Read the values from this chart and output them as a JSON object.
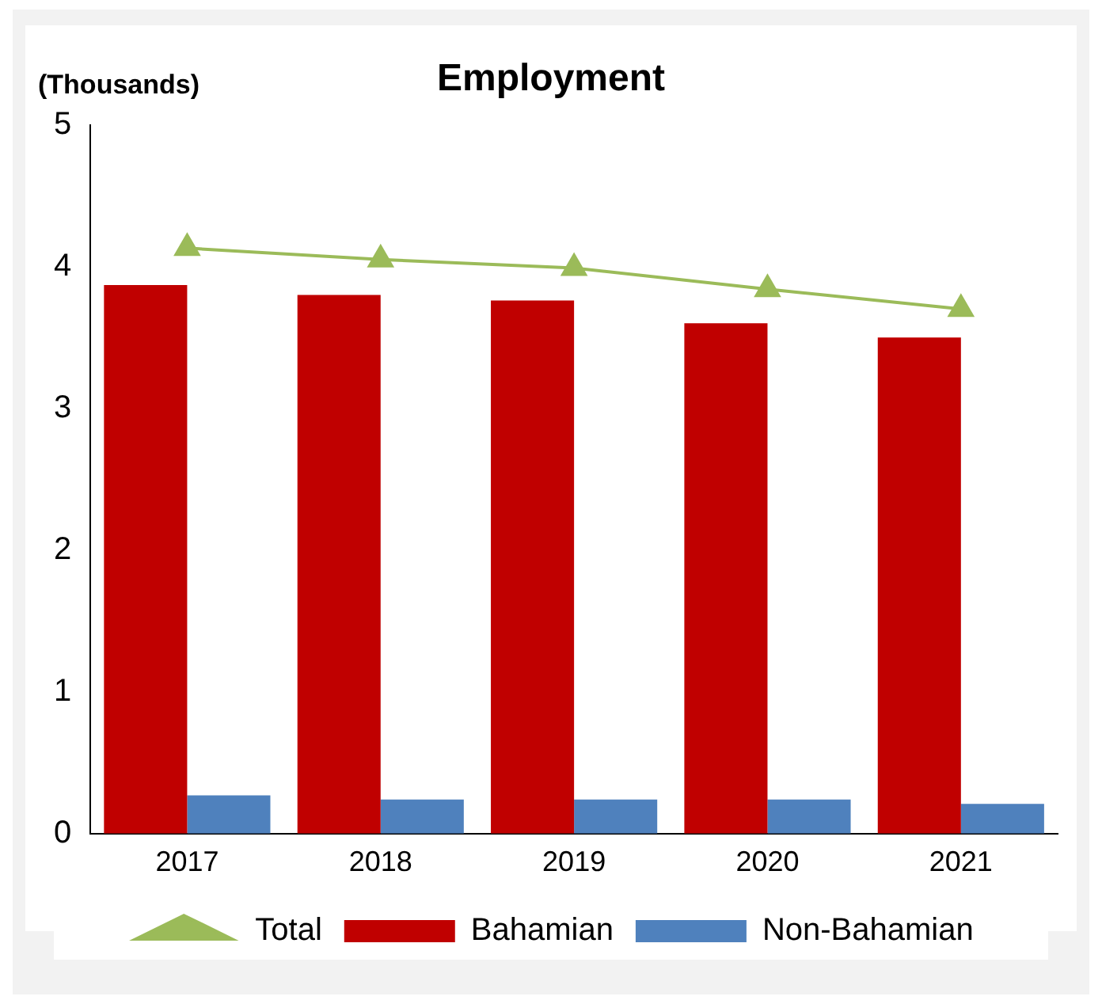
{
  "chart_data": {
    "type": "bar",
    "title": "Employment",
    "ylabel": "(Thousands)",
    "categories": [
      "2017",
      "2018",
      "2019",
      "2020",
      "2021"
    ],
    "series": [
      {
        "name": "Bahamian",
        "color": "#c00000",
        "values": [
          3.87,
          3.8,
          3.76,
          3.6,
          3.5
        ]
      },
      {
        "name": "Non-Bahamian",
        "color": "#4f81bd",
        "values": [
          0.27,
          0.24,
          0.24,
          0.24,
          0.21
        ]
      },
      {
        "name": "Total",
        "type": "line",
        "color": "#9bbb59",
        "marker": "triangle",
        "values": [
          4.13,
          4.05,
          3.99,
          3.84,
          3.7
        ]
      }
    ],
    "ylim": [
      0,
      5
    ],
    "yticks": [
      0,
      1,
      2,
      3,
      4,
      5
    ],
    "grid": false,
    "legend": "bottom"
  }
}
